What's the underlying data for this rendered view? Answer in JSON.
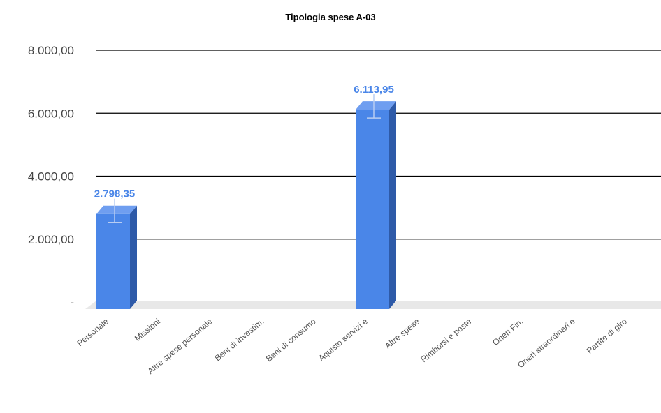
{
  "chart_data": {
    "type": "bar",
    "title": "Tipologia spese A-03",
    "xlabel": "",
    "ylabel": "",
    "ylim": [
      0,
      8000
    ],
    "yticks": [
      {
        "value": 0,
        "label": "-"
      },
      {
        "value": 2000,
        "label": "2.000,00"
      },
      {
        "value": 4000,
        "label": "4.000,00"
      },
      {
        "value": 6000,
        "label": "6.000,00"
      },
      {
        "value": 8000,
        "label": "8.000,00"
      }
    ],
    "categories": [
      "Personale",
      "Missioni",
      "Altre spese personale",
      "Beni di investim.",
      "Beni di consumo",
      "Aquisto servizi e",
      "Altre spese",
      "Rimborsi e poste",
      "Oneri Fin.",
      "Oneri straordinari e",
      "Partite di giro"
    ],
    "values": [
      2798.35,
      0,
      0,
      0,
      0,
      6113.95,
      0,
      0,
      0,
      0,
      0
    ],
    "data_labels": [
      "2.798,35",
      "",
      "",
      "",
      "",
      "6.113,95",
      "",
      "",
      "",
      "",
      ""
    ],
    "grid": true,
    "legend": "none",
    "style": "3d-column",
    "colors": {
      "bar_front": "#4a86e8",
      "bar_side": "#2e5aa8",
      "bar_top": "#6f9ef0",
      "data_label": "#4a86e8",
      "gridline": "#000000",
      "floor": "#e8e8e8",
      "error_bar": "#b8cdf2"
    }
  }
}
